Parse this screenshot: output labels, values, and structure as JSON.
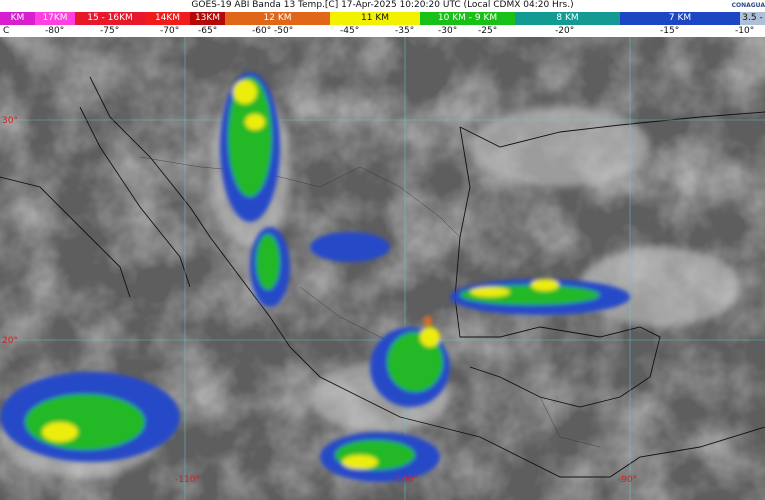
{
  "header": {
    "title": "GOES-19 ABI Banda 13 Temp.[C] 17-Apr-2025 10:20:20 UTC (Local CDMX  04:20 Hrs.)",
    "logo_text": "CONAGUA"
  },
  "legend": {
    "heights": [
      {
        "label": "KM",
        "color": "#d81fd0"
      },
      {
        "label": "17KM",
        "color": "#ff3fe0"
      },
      {
        "label": "15 - 16KM",
        "color": "#e8182c"
      },
      {
        "label": "14KM",
        "color": "#f01c1c"
      },
      {
        "label": "13KM",
        "color": "#b40808"
      },
      {
        "label": "12 KM",
        "color": "#e0661a"
      },
      {
        "label": "11 KM",
        "color": "#f2f200"
      },
      {
        "label": "10 KM - 9 KM",
        "color": "#18c018"
      },
      {
        "label": "8 KM",
        "color": "#139a92"
      },
      {
        "label": "7 KM",
        "color": "#1c46c4"
      },
      {
        "label": "3.5 -",
        "color": "#aebfd8"
      }
    ],
    "temperatures": [
      "C",
      "-80°",
      "-75°",
      "-70°",
      "-65°",
      "-60° -50°",
      "-45°",
      "-35°",
      "-30°",
      "-25°",
      "-20°",
      "-15°",
      "-10°"
    ]
  },
  "map": {
    "lat_labels": [
      "30°",
      "20°"
    ],
    "lon_labels": [
      "-110°",
      "-100°",
      "-90°"
    ]
  }
}
